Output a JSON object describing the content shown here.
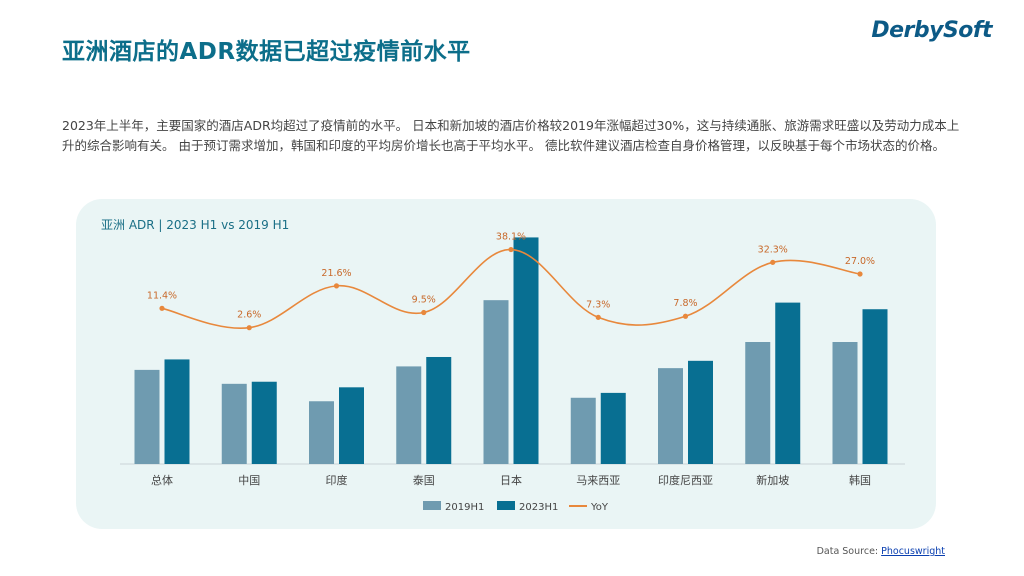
{
  "header": {
    "title": "亚洲酒店的ADR数据已超过疫情前水平",
    "logo_text": "DerbySoft"
  },
  "intro": {
    "text": "2023年上半年，主要国家的酒店ADR均超过了疫情前的水平。 日本和新加坡的酒店价格较2019年涨幅超过30%，这与持续通胀、旅游需求旺盛以及劳动力成本上升的综合影响有关。 由于预订需求增加，韩国和印度的平均房价增长也高于平均水平。 德比软件建议酒店检查自身价格管理，以反映基于每个市场状态的价格。"
  },
  "footer": {
    "source_label": "Data Source: ",
    "source_link": "Phocuswright"
  },
  "colors": {
    "title": "#0c6e8a",
    "bar_2019": "#6f9bb0",
    "bar_2023": "#086f92",
    "yoy_line": "#e8883c",
    "panel_bg": "#eaf5f5"
  },
  "chart_data": {
    "type": "bar",
    "title": "亚洲 ADR | 2023 H1 vs 2019 H1",
    "categories": [
      "总体",
      "中国",
      "印度",
      "泰国",
      "日本",
      "马来西亚",
      "印度尼西亚",
      "新加坡",
      "韩国"
    ],
    "series": [
      {
        "name": "2019H1",
        "values": [
          27,
          23,
          18,
          28,
          47,
          19,
          27.5,
          35,
          35
        ]
      },
      {
        "name": "2023H1",
        "values": [
          30,
          23.6,
          22,
          30.7,
          65,
          20.4,
          29.6,
          46.3,
          44.4
        ]
      }
    ],
    "line_series": {
      "name": "YoY",
      "values": [
        11.4,
        2.6,
        21.6,
        9.5,
        38.1,
        7.3,
        7.8,
        32.3,
        27.0
      ],
      "labels": [
        "11.4%",
        "2.6%",
        "21.6%",
        "9.5%",
        "38.1%",
        "7.3%",
        "7.8%",
        "32.3%",
        "27.0%"
      ]
    },
    "ylim": [
      0,
      70
    ],
    "yoy_range": [
      0,
      40
    ],
    "legend": [
      "2019H1",
      "2023H1",
      "YoY"
    ],
    "legend_position": "bottom",
    "grid": false
  }
}
